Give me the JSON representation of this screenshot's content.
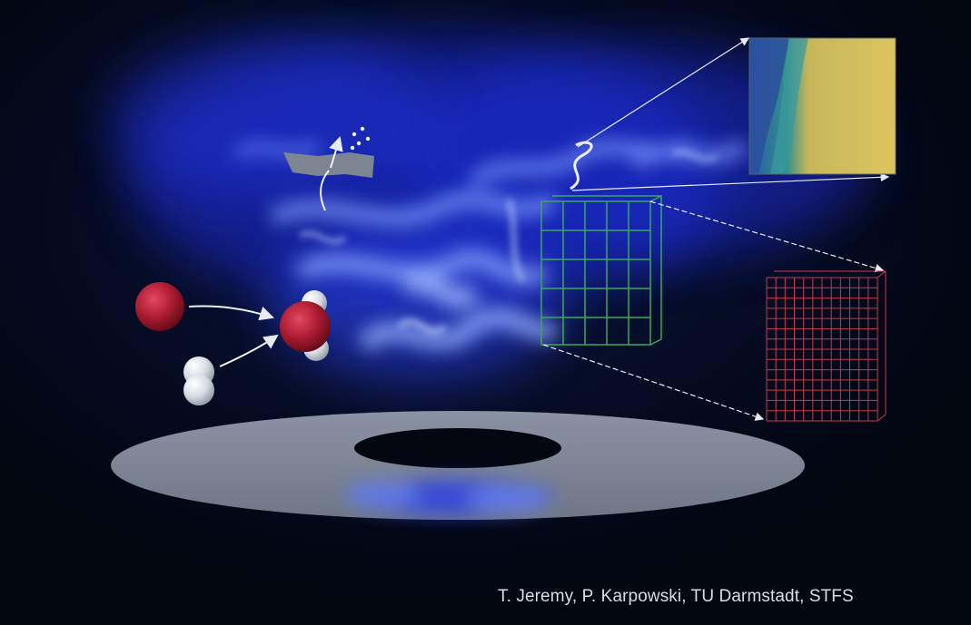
{
  "credit": "T. Jeremy, P. Karpowski, TU Darmstadt, STFS",
  "colors": {
    "background": "#02060f",
    "flame": "#3b4dff",
    "disk": "#7e8596",
    "oxygen": "#b11e34",
    "hydrogen": "#dfe4ea",
    "fine_grid": "#c43a4d",
    "coarse_grid": "#37a35a",
    "zoom_panel": "#d9c25c"
  }
}
